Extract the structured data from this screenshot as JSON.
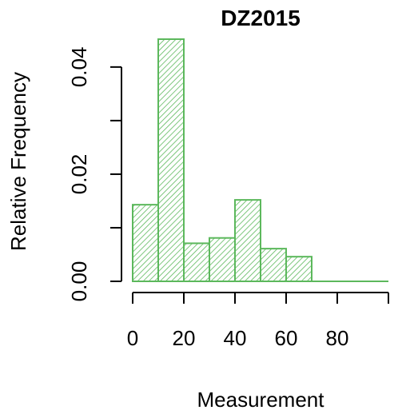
{
  "chart_data": {
    "type": "bar",
    "title": "DZ2015",
    "xlabel": "Measurement",
    "ylabel": "Relative Frequency",
    "bin_edges": [
      0,
      10,
      20,
      30,
      40,
      50,
      60,
      70,
      80,
      90,
      100
    ],
    "values": [
      0.0143,
      0.0452,
      0.0071,
      0.0081,
      0.0152,
      0.0061,
      0.0046,
      0,
      0,
      0
    ],
    "xlim": [
      0,
      100
    ],
    "ylim": [
      0,
      0.0452
    ],
    "xticks": [
      0,
      20,
      40,
      60,
      80,
      100
    ],
    "xtick_labels": [
      "0",
      "20",
      "40",
      "60",
      "80",
      ""
    ],
    "yticks": [
      0.0,
      0.01,
      0.02,
      0.03,
      0.04
    ],
    "ytick_labels": [
      "0.00",
      "",
      "0.02",
      "",
      "0.04"
    ],
    "grid": false,
    "bar_color": "#5cb85c",
    "fill_pattern": "diagonal-hatch"
  }
}
